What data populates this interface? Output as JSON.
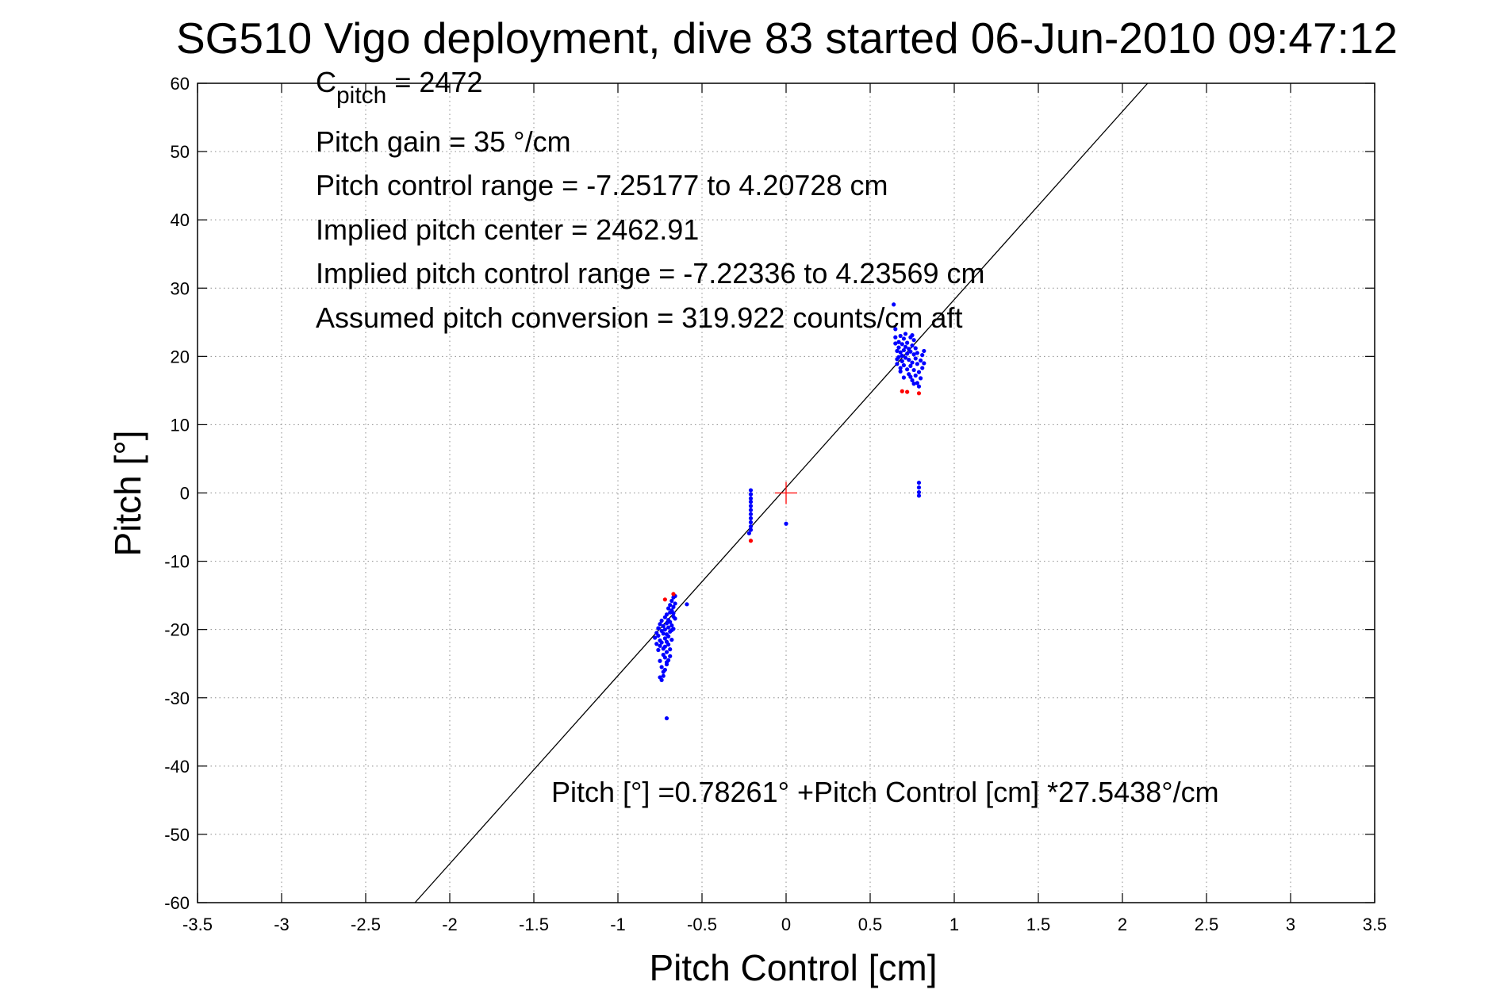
{
  "chart_data": {
    "type": "scatter",
    "title": "SG510 Vigo deployment, dive 83 started 06-Jun-2010 09:47:12",
    "xlabel": "Pitch Control [cm]",
    "ylabel": "Pitch [°]",
    "xlim": [
      -3.5,
      3.5
    ],
    "ylim": [
      -60,
      60
    ],
    "xticks": [
      -3.5,
      -3,
      -2.5,
      -2,
      -1.5,
      -1,
      -0.5,
      0,
      0.5,
      1,
      1.5,
      2,
      2.5,
      3,
      3.5
    ],
    "xtick_labels": [
      "-3.5",
      "-3",
      "-2.5",
      "-2",
      "-1.5",
      "-1",
      "-0.5",
      "0",
      "0.5",
      "1",
      "1.5",
      "2",
      "2.5",
      "3",
      "3.5"
    ],
    "yticks": [
      60,
      50,
      40,
      30,
      20,
      10,
      0,
      -10,
      -20,
      -30,
      -40,
      -50,
      -60
    ],
    "ytick_labels": [
      "60",
      "50",
      "40",
      "30",
      "20",
      "10",
      "0",
      "-10",
      "-20",
      "-30",
      "-40",
      "-50",
      "-60"
    ],
    "grid": true,
    "annotations": {
      "c_pitch_main": "C",
      "c_pitch_sub": "pitch",
      "c_pitch_value": " = 2472",
      "pitch_gain": "Pitch gain = 35 °/cm",
      "pitch_control_range": "Pitch control range = -7.25177 to 4.20728 cm",
      "implied_pitch_center": "Implied pitch center = 2462.91",
      "implied_control_range": "Implied pitch control range = -7.22336 to 4.23569 cm",
      "assumed_conversion": "Assumed pitch conversion = 319.922 counts/cm aft",
      "fit_equation": "Pitch [°] =0.78261° +Pitch Control [cm] *27.5438°/cm"
    },
    "fit_line": {
      "intercept": 0.78261,
      "slope": 27.5438,
      "color": "#000000"
    },
    "center_marker": {
      "x": 0,
      "y": 0,
      "color": "#ff0000"
    },
    "series": [
      {
        "color": "#0000ff",
        "points": [
          [
            -0.78,
            -21.2
          ],
          [
            -0.77,
            -20.5
          ],
          [
            -0.77,
            -22.1
          ],
          [
            -0.76,
            -19.8
          ],
          [
            -0.76,
            -23.0
          ],
          [
            -0.76,
            -20.9
          ],
          [
            -0.75,
            -21.6
          ],
          [
            -0.75,
            -24.6
          ],
          [
            -0.75,
            -19.2
          ],
          [
            -0.75,
            -22.4
          ],
          [
            -0.74,
            -20.2
          ],
          [
            -0.74,
            -21.9
          ],
          [
            -0.74,
            -25.5
          ],
          [
            -0.74,
            -18.7
          ],
          [
            -0.73,
            -22.8
          ],
          [
            -0.73,
            -20.6
          ],
          [
            -0.73,
            -23.7
          ],
          [
            -0.73,
            -19.5
          ],
          [
            -0.73,
            -26.2
          ],
          [
            -0.72,
            -21.3
          ],
          [
            -0.72,
            -18.2
          ],
          [
            -0.72,
            -22.5
          ],
          [
            -0.72,
            -24.1
          ],
          [
            -0.72,
            -20.0
          ],
          [
            -0.71,
            -19.1
          ],
          [
            -0.71,
            -21.8
          ],
          [
            -0.71,
            -23.3
          ],
          [
            -0.71,
            -17.8
          ],
          [
            -0.71,
            -25.1
          ],
          [
            -0.71,
            -20.7
          ],
          [
            -0.7,
            -18.6
          ],
          [
            -0.7,
            -22.2
          ],
          [
            -0.7,
            -19.7
          ],
          [
            -0.7,
            -24.5
          ],
          [
            -0.7,
            -16.9
          ],
          [
            -0.7,
            -21.0
          ],
          [
            -0.69,
            -17.5
          ],
          [
            -0.69,
            -20.3
          ],
          [
            -0.69,
            -22.9
          ],
          [
            -0.69,
            -18.9
          ],
          [
            -0.69,
            -16.4
          ],
          [
            -0.69,
            -23.9
          ],
          [
            -0.68,
            -19.4
          ],
          [
            -0.68,
            -17.2
          ],
          [
            -0.68,
            -21.5
          ],
          [
            -0.68,
            -15.8
          ],
          [
            -0.68,
            -20.1
          ],
          [
            -0.67,
            -18.1
          ],
          [
            -0.67,
            -16.7
          ],
          [
            -0.67,
            -19.9
          ],
          [
            -0.67,
            -15.3
          ],
          [
            -0.67,
            -17.6
          ],
          [
            -0.66,
            -16.2
          ],
          [
            -0.66,
            -18.4
          ],
          [
            -0.66,
            -15.1
          ],
          [
            -0.75,
            -27.0
          ],
          [
            -0.74,
            -27.4
          ],
          [
            -0.73,
            -26.8
          ],
          [
            -0.72,
            -25.9
          ],
          [
            -0.71,
            -24.8
          ],
          [
            -0.59,
            -16.3
          ],
          [
            -0.71,
            -33.0
          ],
          [
            -0.21,
            0.4
          ],
          [
            -0.21,
            -0.2
          ],
          [
            -0.21,
            -0.8
          ],
          [
            -0.21,
            -1.3
          ],
          [
            -0.21,
            -1.9
          ],
          [
            -0.21,
            -2.5
          ],
          [
            -0.21,
            -3.1
          ],
          [
            -0.21,
            -3.7
          ],
          [
            -0.21,
            -4.3
          ],
          [
            -0.21,
            -4.9
          ],
          [
            -0.21,
            -5.4
          ],
          [
            -0.22,
            -5.9
          ],
          [
            0.0,
            -4.5
          ],
          [
            0.64,
            27.6
          ],
          [
            0.65,
            24.0
          ],
          [
            0.65,
            22.8
          ],
          [
            0.65,
            21.9
          ],
          [
            0.66,
            20.8
          ],
          [
            0.66,
            19.6
          ],
          [
            0.66,
            18.9
          ],
          [
            0.67,
            21.3
          ],
          [
            0.67,
            22.1
          ],
          [
            0.67,
            19.9
          ],
          [
            0.68,
            20.6
          ],
          [
            0.68,
            23.0
          ],
          [
            0.68,
            18.3
          ],
          [
            0.69,
            21.8
          ],
          [
            0.69,
            20.1
          ],
          [
            0.69,
            19.3
          ],
          [
            0.7,
            22.6
          ],
          [
            0.7,
            20.9
          ],
          [
            0.7,
            18.7
          ],
          [
            0.71,
            21.4
          ],
          [
            0.71,
            19.8
          ],
          [
            0.71,
            23.3
          ],
          [
            0.72,
            20.4
          ],
          [
            0.72,
            22.0
          ],
          [
            0.72,
            18.1
          ],
          [
            0.73,
            21.1
          ],
          [
            0.73,
            19.5
          ],
          [
            0.73,
            17.4
          ],
          [
            0.74,
            22.8
          ],
          [
            0.74,
            20.7
          ],
          [
            0.74,
            18.6
          ],
          [
            0.75,
            21.6
          ],
          [
            0.75,
            19.1
          ],
          [
            0.75,
            23.1
          ],
          [
            0.75,
            16.5
          ],
          [
            0.76,
            20.3
          ],
          [
            0.76,
            18.0
          ],
          [
            0.76,
            22.4
          ],
          [
            0.77,
            19.7
          ],
          [
            0.77,
            17.2
          ],
          [
            0.77,
            21.2
          ],
          [
            0.78,
            16.1
          ],
          [
            0.78,
            18.9
          ],
          [
            0.78,
            20.5
          ],
          [
            0.79,
            15.6
          ],
          [
            0.79,
            17.7
          ],
          [
            0.8,
            19.4
          ],
          [
            0.8,
            16.8
          ],
          [
            0.81,
            20.2
          ],
          [
            0.81,
            18.3
          ],
          [
            0.82,
            19.0
          ],
          [
            0.82,
            20.8
          ],
          [
            0.76,
            16.0
          ],
          [
            0.74,
            17.0
          ],
          [
            0.7,
            16.9
          ],
          [
            0.68,
            17.8
          ],
          [
            0.79,
            1.5
          ],
          [
            0.79,
            0.8
          ],
          [
            0.79,
            0.1
          ],
          [
            0.79,
            -0.4
          ]
        ]
      },
      {
        "color": "#ff0000",
        "points": [
          [
            -0.72,
            -15.6
          ],
          [
            -0.67,
            -14.8
          ],
          [
            -0.21,
            -7.0
          ],
          [
            0.69,
            14.9
          ],
          [
            0.72,
            14.8
          ],
          [
            0.79,
            14.6
          ]
        ]
      }
    ]
  }
}
